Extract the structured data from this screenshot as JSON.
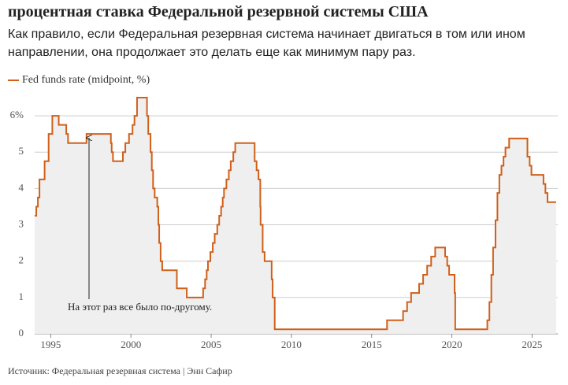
{
  "chart_data": {
    "type": "line",
    "title": "процентная ставка Федеральной резервной системы США",
    "subtitle": "Как правило, если Федеральная резервная система начинает двигаться в том или ином направлении, она продолжает это делать еще как минимум пару раз.",
    "source": "Источник: Федеральная резервная система | Энн Сафир",
    "annotation": "На этот раз все было по-другому.",
    "step": true,
    "area_color": "#efefef",
    "grid": true,
    "xlim": [
      1994,
      2026.6
    ],
    "xticks": [
      1995,
      2000,
      2005,
      2010,
      2015,
      2020,
      2025
    ],
    "ylim": [
      0,
      6.5
    ],
    "yticks": [
      0,
      1,
      2,
      3,
      4,
      5,
      {
        "value": 6,
        "label": "6%"
      }
    ],
    "x": [
      1994.0,
      1994.1,
      1994.2,
      1994.3,
      1994.37,
      1994.62,
      1994.87,
      1995.1,
      1995.5,
      1995.97,
      1996.08,
      1997.23,
      1998.75,
      1998.8,
      1998.88,
      1999.5,
      1999.65,
      1999.88,
      2000.1,
      2000.22,
      2000.38,
      2001.0,
      2001.08,
      2001.22,
      2001.3,
      2001.38,
      2001.48,
      2001.64,
      2001.71,
      2001.76,
      2001.85,
      2001.95,
      2002.86,
      2003.48,
      2004.5,
      2004.62,
      2004.72,
      2004.8,
      2004.95,
      2005.1,
      2005.22,
      2005.38,
      2005.5,
      2005.62,
      2005.72,
      2005.8,
      2005.95,
      2006.1,
      2006.22,
      2006.38,
      2006.5,
      2007.71,
      2007.83,
      2007.95,
      2008.06,
      2008.08,
      2008.21,
      2008.33,
      2008.77,
      2008.83,
      2008.96,
      2015.96,
      2016.96,
      2017.21,
      2017.46,
      2017.96,
      2018.21,
      2018.46,
      2018.71,
      2018.96,
      2019.58,
      2019.71,
      2019.83,
      2020.17,
      2020.21,
      2022.21,
      2022.34,
      2022.46,
      2022.57,
      2022.72,
      2022.84,
      2022.96,
      2023.09,
      2023.22,
      2023.34,
      2023.57,
      2024.71,
      2024.85,
      2024.96,
      2025.71,
      2025.83,
      2025.96,
      2026.5
    ],
    "series": [
      {
        "name": "Fed funds rate (midpoint, %)",
        "color": "#d0601a",
        "values": [
          3.25,
          3.5,
          3.75,
          4.25,
          4.25,
          4.75,
          5.5,
          6.0,
          5.75,
          5.5,
          5.25,
          5.5,
          5.25,
          5.0,
          4.75,
          5.0,
          5.25,
          5.5,
          5.75,
          6.0,
          6.5,
          6.0,
          5.5,
          5.0,
          4.5,
          4.0,
          3.75,
          3.5,
          3.0,
          2.5,
          2.0,
          1.75,
          1.25,
          1.0,
          1.25,
          1.5,
          1.75,
          2.0,
          2.25,
          2.5,
          2.75,
          3.0,
          3.25,
          3.5,
          3.75,
          4.0,
          4.25,
          4.5,
          4.75,
          5.0,
          5.25,
          4.75,
          4.5,
          4.25,
          3.5,
          3.0,
          2.25,
          2.0,
          1.5,
          1.0,
          0.125,
          0.375,
          0.625,
          0.875,
          1.125,
          1.375,
          1.625,
          1.875,
          2.125,
          2.375,
          2.125,
          1.875,
          1.625,
          1.125,
          0.125,
          0.375,
          0.875,
          1.625,
          2.375,
          3.125,
          3.875,
          4.375,
          4.625,
          4.875,
          5.125,
          5.375,
          4.875,
          4.625,
          4.375,
          4.125,
          3.875,
          3.625,
          3.625
        ]
      }
    ]
  }
}
